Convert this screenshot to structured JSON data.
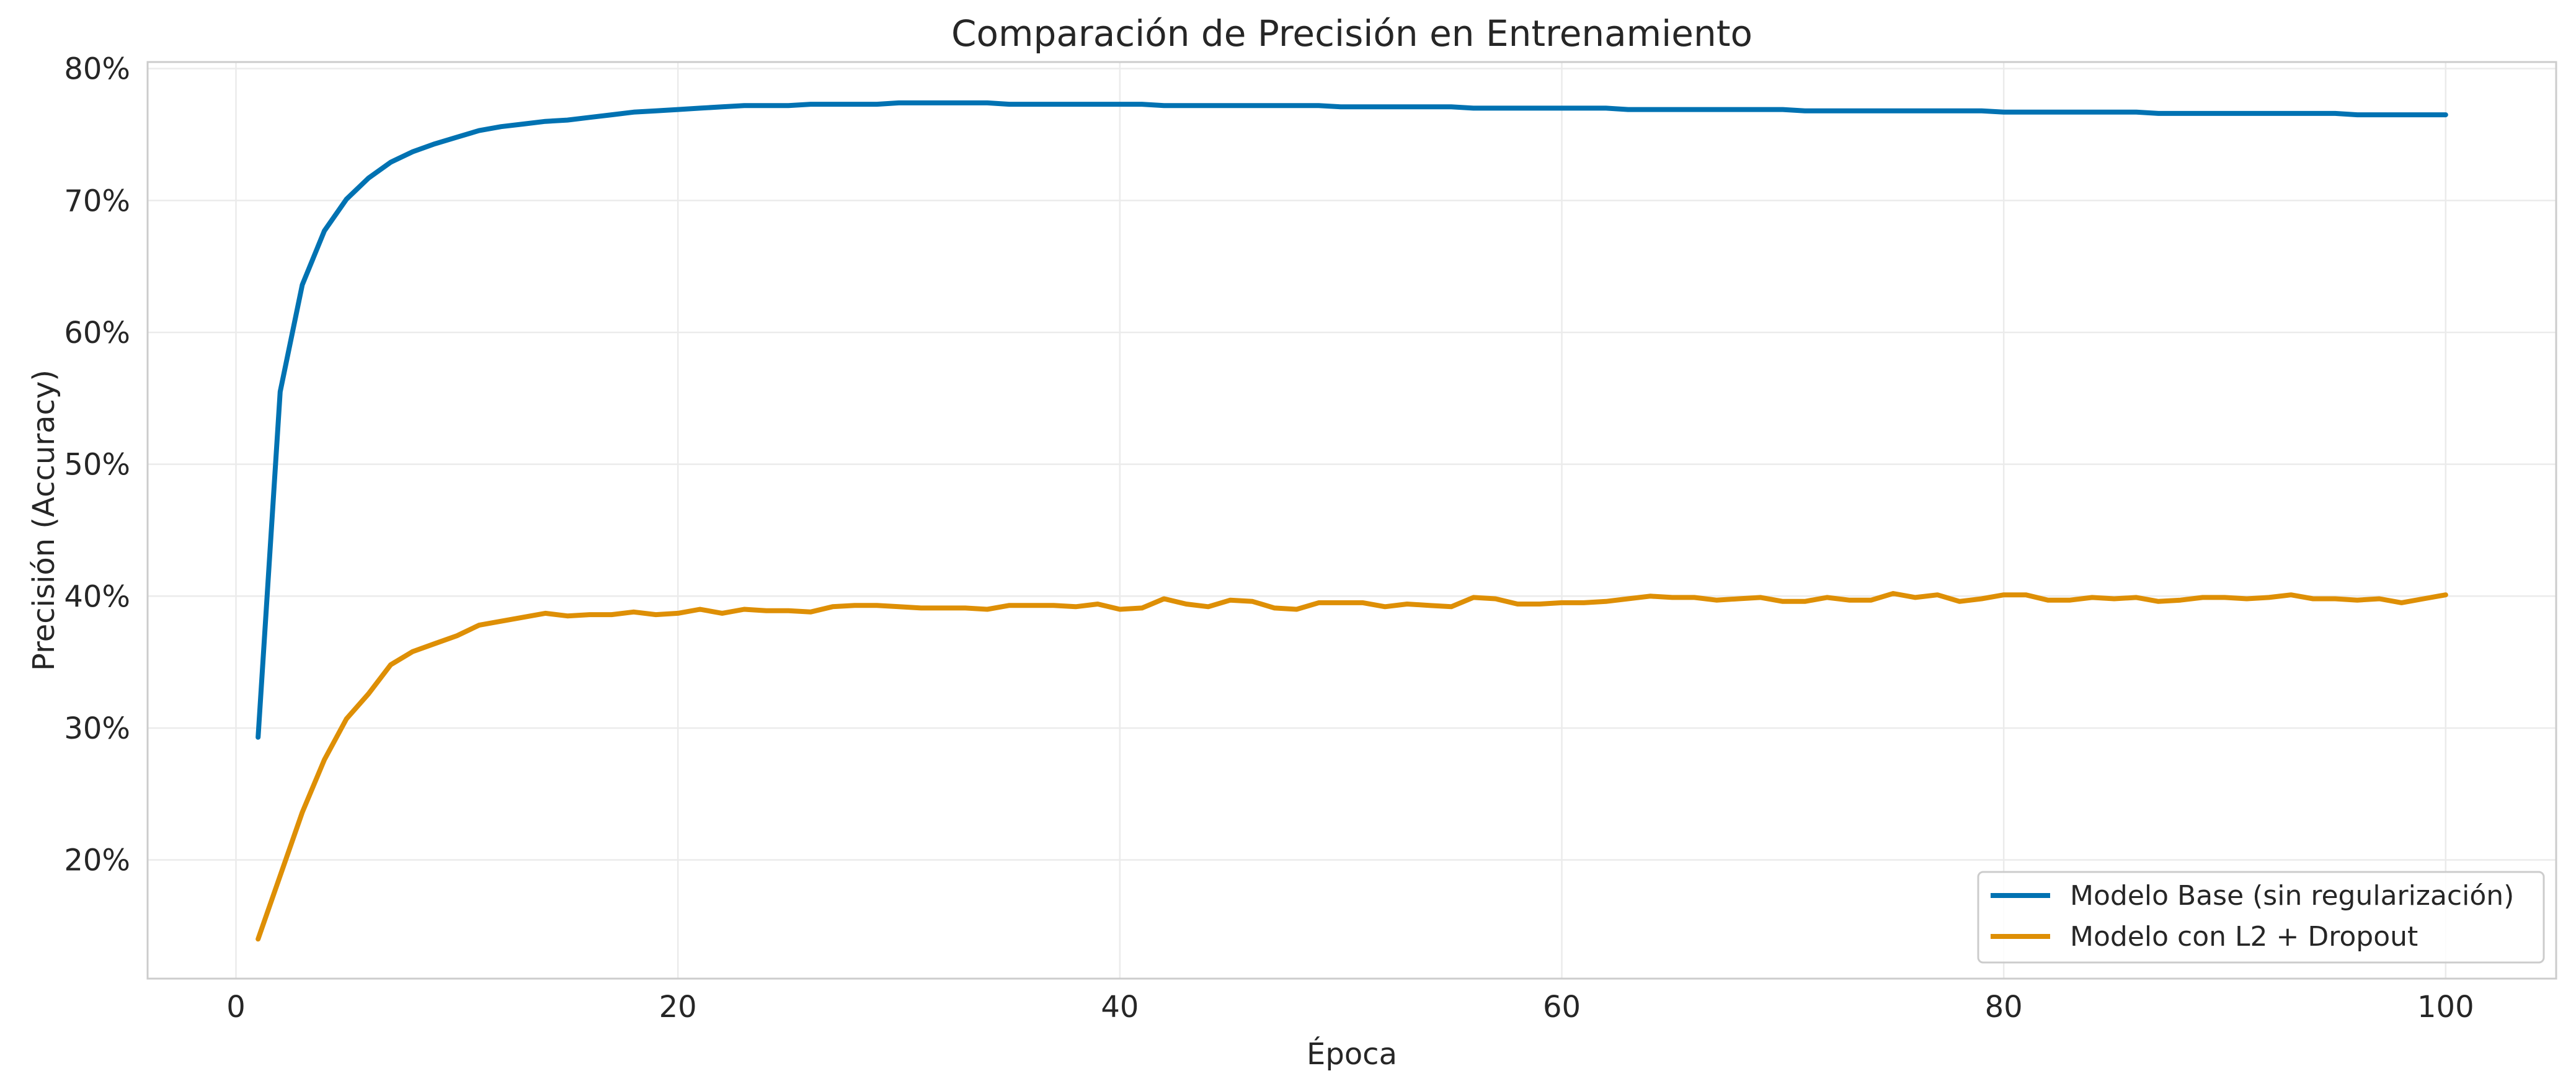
{
  "chart_data": {
    "type": "line",
    "title": "Comparación de Precisión en Entrenamiento",
    "xlabel": "Época",
    "ylabel": "Precisión (Accuracy)",
    "xlim": [
      -4,
      105
    ],
    "ylim": [
      0.11,
      0.805
    ],
    "xticks": [
      0,
      20,
      40,
      60,
      80,
      100
    ],
    "yticks": [
      0.2,
      0.3,
      0.4,
      0.5,
      0.6,
      0.7,
      0.8
    ],
    "ytick_labels": [
      "20%",
      "30%",
      "40%",
      "50%",
      "60%",
      "70%",
      "80%"
    ],
    "grid": true,
    "legend_position": "lower-right",
    "x": [
      1,
      2,
      3,
      4,
      5,
      6,
      7,
      8,
      9,
      10,
      11,
      12,
      13,
      14,
      15,
      16,
      17,
      18,
      19,
      20,
      21,
      22,
      23,
      24,
      25,
      26,
      27,
      28,
      29,
      30,
      31,
      32,
      33,
      34,
      35,
      36,
      37,
      38,
      39,
      40,
      41,
      42,
      43,
      44,
      45,
      46,
      47,
      48,
      49,
      50,
      51,
      52,
      53,
      54,
      55,
      56,
      57,
      58,
      59,
      60,
      61,
      62,
      63,
      64,
      65,
      66,
      67,
      68,
      69,
      70,
      71,
      72,
      73,
      74,
      75,
      76,
      77,
      78,
      79,
      80,
      81,
      82,
      83,
      84,
      85,
      86,
      87,
      88,
      89,
      90,
      91,
      92,
      93,
      94,
      95,
      96,
      97,
      98,
      99,
      100
    ],
    "series": [
      {
        "name": "Modelo Base (sin regularización)",
        "color": "#0072b2",
        "values": [
          0.293,
          0.555,
          0.636,
          0.677,
          0.701,
          0.717,
          0.729,
          0.737,
          0.743,
          0.748,
          0.753,
          0.756,
          0.758,
          0.76,
          0.761,
          0.763,
          0.765,
          0.767,
          0.768,
          0.769,
          0.77,
          0.771,
          0.772,
          0.772,
          0.772,
          0.773,
          0.773,
          0.773,
          0.773,
          0.774,
          0.774,
          0.774,
          0.774,
          0.774,
          0.773,
          0.773,
          0.773,
          0.773,
          0.773,
          0.773,
          0.773,
          0.772,
          0.772,
          0.772,
          0.772,
          0.772,
          0.772,
          0.772,
          0.772,
          0.771,
          0.771,
          0.771,
          0.771,
          0.771,
          0.771,
          0.77,
          0.77,
          0.77,
          0.77,
          0.77,
          0.77,
          0.77,
          0.769,
          0.769,
          0.769,
          0.769,
          0.769,
          0.769,
          0.769,
          0.769,
          0.768,
          0.768,
          0.768,
          0.768,
          0.768,
          0.768,
          0.768,
          0.768,
          0.768,
          0.767,
          0.767,
          0.767,
          0.767,
          0.767,
          0.767,
          0.767,
          0.766,
          0.766,
          0.766,
          0.766,
          0.766,
          0.766,
          0.766,
          0.766,
          0.766,
          0.765,
          0.765,
          0.765,
          0.765,
          0.765
        ]
      },
      {
        "name": "Modelo con L2 + Dropout",
        "color": "#de8f05",
        "values": [
          0.14,
          0.188,
          0.236,
          0.276,
          0.307,
          0.326,
          0.348,
          0.358,
          0.364,
          0.37,
          0.378,
          0.381,
          0.384,
          0.387,
          0.385,
          0.386,
          0.386,
          0.388,
          0.386,
          0.387,
          0.39,
          0.387,
          0.39,
          0.389,
          0.389,
          0.388,
          0.392,
          0.393,
          0.393,
          0.392,
          0.391,
          0.391,
          0.391,
          0.39,
          0.393,
          0.393,
          0.393,
          0.392,
          0.394,
          0.39,
          0.391,
          0.398,
          0.394,
          0.392,
          0.397,
          0.396,
          0.391,
          0.39,
          0.395,
          0.395,
          0.395,
          0.392,
          0.394,
          0.393,
          0.392,
          0.399,
          0.398,
          0.394,
          0.394,
          0.395,
          0.395,
          0.396,
          0.398,
          0.4,
          0.399,
          0.399,
          0.397,
          0.398,
          0.399,
          0.396,
          0.396,
          0.399,
          0.397,
          0.397,
          0.402,
          0.399,
          0.401,
          0.396,
          0.398,
          0.401,
          0.401,
          0.397,
          0.397,
          0.399,
          0.398,
          0.399,
          0.396,
          0.397,
          0.399,
          0.399,
          0.398,
          0.399,
          0.401,
          0.398,
          0.398,
          0.397,
          0.398,
          0.395,
          0.398,
          0.401
        ]
      }
    ]
  }
}
